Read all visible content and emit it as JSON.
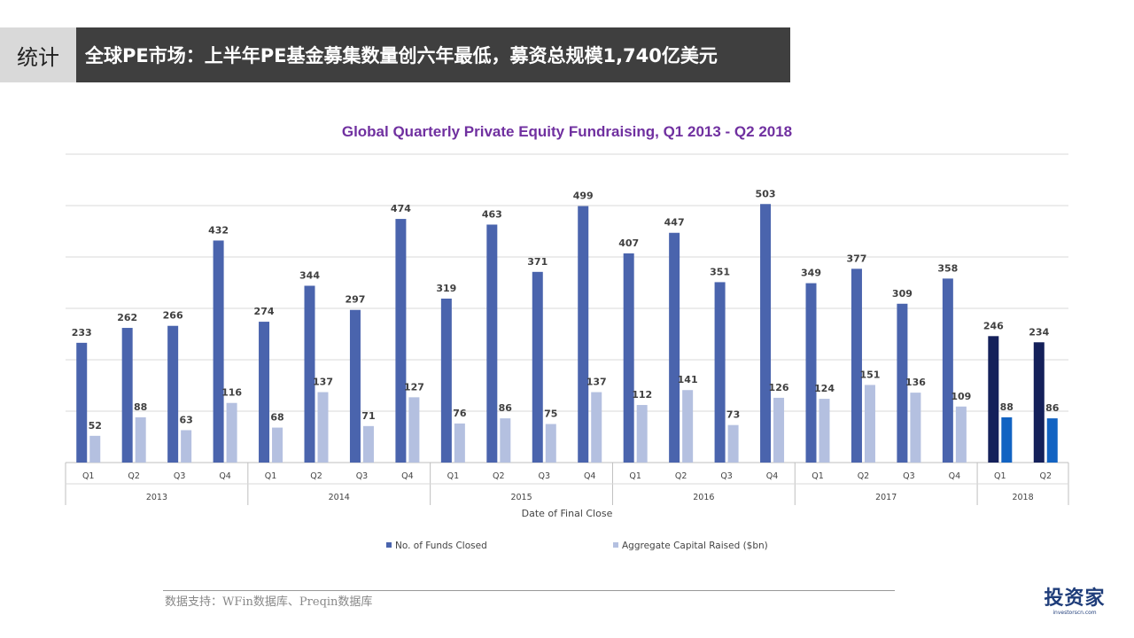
{
  "header": {
    "section": "统计",
    "title": "全球PE市场：上半年PE基金募集数量创六年最低，募资总规模1,740亿美元"
  },
  "source_note": "数据支持：WFin数据库、Preqin数据库",
  "logo": {
    "text": "投资家",
    "subtext": "investorscn.com"
  },
  "colors": {
    "funds": "#4a64ad",
    "capital": "#b4c0e0",
    "funds_highlight": "#14205a",
    "capital_highlight": "#1263c2",
    "title": "#7030a0"
  },
  "chart_data": {
    "type": "bar",
    "title": "Global Quarterly Private Equity Fundraising, Q1 2013 - Q2 2018",
    "xlabel": "Date of Final Close",
    "ylabel": "",
    "ylim": [
      0,
      600
    ],
    "grid": true,
    "legend_position": "bottom",
    "categories": [
      "Q1",
      "Q2",
      "Q3",
      "Q4",
      "Q1",
      "Q2",
      "Q3",
      "Q4",
      "Q1",
      "Q2",
      "Q3",
      "Q4",
      "Q1",
      "Q2",
      "Q3",
      "Q4",
      "Q1",
      "Q2",
      "Q3",
      "Q4",
      "Q1",
      "Q2"
    ],
    "years": [
      {
        "label": "2013",
        "quarters": 4
      },
      {
        "label": "2014",
        "quarters": 4
      },
      {
        "label": "2015",
        "quarters": 4
      },
      {
        "label": "2016",
        "quarters": 4
      },
      {
        "label": "2017",
        "quarters": 4
      },
      {
        "label": "2018",
        "quarters": 2
      }
    ],
    "series": [
      {
        "name": "No. of Funds Closed",
        "values": [
          233,
          262,
          266,
          432,
          274,
          344,
          297,
          474,
          319,
          463,
          371,
          499,
          407,
          447,
          351,
          503,
          349,
          377,
          309,
          358,
          246,
          234
        ]
      },
      {
        "name": "Aggregate Capital Raised ($bn)",
        "values": [
          52,
          88,
          63,
          116,
          68,
          137,
          71,
          127,
          76,
          86,
          75,
          137,
          112,
          141,
          73,
          126,
          124,
          151,
          136,
          109,
          88,
          86
        ]
      }
    ]
  }
}
